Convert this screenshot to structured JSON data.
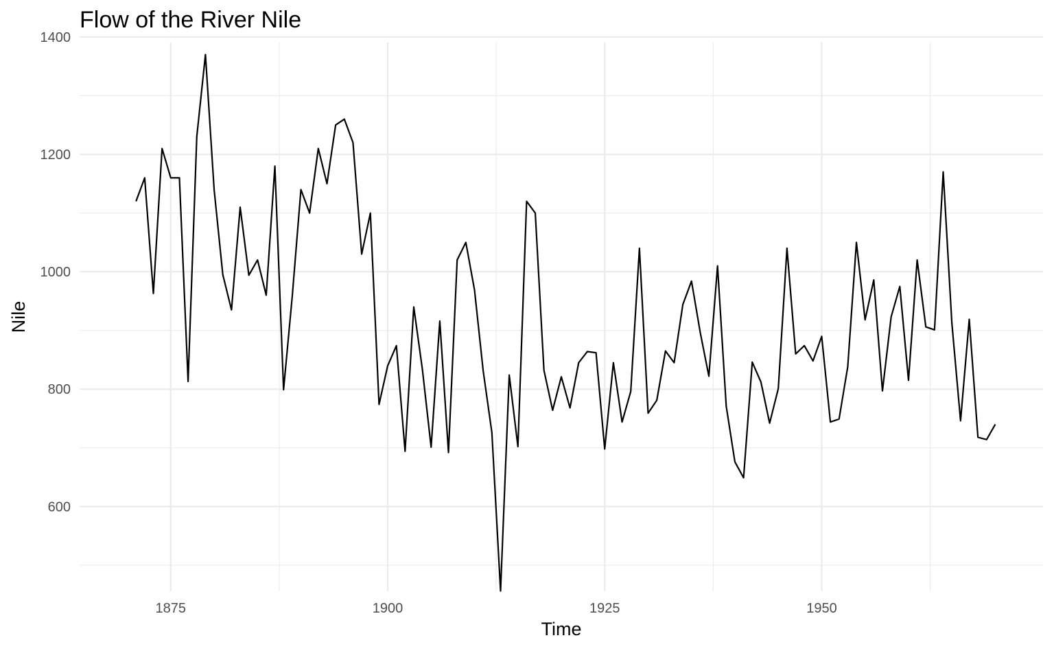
{
  "chart_data": {
    "type": "line",
    "title": "Flow of the River Nile",
    "xlabel": "Time",
    "ylabel": "Nile",
    "xlim": [
      1864.5,
      1975.5
    ],
    "ylim": [
      455.5,
      1390.5
    ],
    "x_ticks": [
      1875,
      1900,
      1925,
      1950
    ],
    "x_tick_labels": [
      "1875",
      "1900",
      "1925",
      "1950"
    ],
    "y_ticks": [
      600,
      800,
      1000,
      1200,
      1400
    ],
    "y_tick_labels": [
      "600",
      "800",
      "1000",
      "1200",
      "1400"
    ],
    "grid": true,
    "line_color": "#000000",
    "x": [
      1871,
      1872,
      1873,
      1874,
      1875,
      1876,
      1877,
      1878,
      1879,
      1880,
      1881,
      1882,
      1883,
      1884,
      1885,
      1886,
      1887,
      1888,
      1889,
      1890,
      1891,
      1892,
      1893,
      1894,
      1895,
      1896,
      1897,
      1898,
      1899,
      1900,
      1901,
      1902,
      1903,
      1904,
      1905,
      1906,
      1907,
      1908,
      1909,
      1910,
      1911,
      1912,
      1913,
      1914,
      1915,
      1916,
      1917,
      1918,
      1919,
      1920,
      1921,
      1922,
      1923,
      1924,
      1925,
      1926,
      1927,
      1928,
      1929,
      1930,
      1931,
      1932,
      1933,
      1934,
      1935,
      1936,
      1937,
      1938,
      1939,
      1940,
      1941,
      1942,
      1943,
      1944,
      1945,
      1946,
      1947,
      1948,
      1949,
      1950,
      1951,
      1952,
      1953,
      1954,
      1955,
      1956,
      1957,
      1958,
      1959,
      1960,
      1961,
      1962,
      1963,
      1964,
      1965,
      1966,
      1967,
      1968,
      1969,
      1970
    ],
    "y": [
      1120,
      1160,
      963,
      1210,
      1160,
      1160,
      813,
      1230,
      1370,
      1140,
      995,
      935,
      1110,
      994,
      1020,
      960,
      1180,
      799,
      958,
      1140,
      1100,
      1210,
      1150,
      1250,
      1260,
      1220,
      1030,
      1100,
      774,
      840,
      874,
      694,
      940,
      833,
      701,
      916,
      692,
      1020,
      1050,
      969,
      831,
      726,
      456,
      824,
      702,
      1120,
      1100,
      832,
      764,
      821,
      768,
      845,
      864,
      862,
      698,
      845,
      744,
      796,
      1040,
      759,
      781,
      865,
      845,
      944,
      984,
      897,
      822,
      1010,
      771,
      676,
      649,
      846,
      812,
      742,
      801,
      1040,
      860,
      874,
      848,
      890,
      744,
      749,
      838,
      1050,
      918,
      986,
      797,
      923,
      975,
      815,
      1020,
      906,
      901,
      1170,
      912,
      746,
      919,
      718,
      714,
      740
    ]
  }
}
